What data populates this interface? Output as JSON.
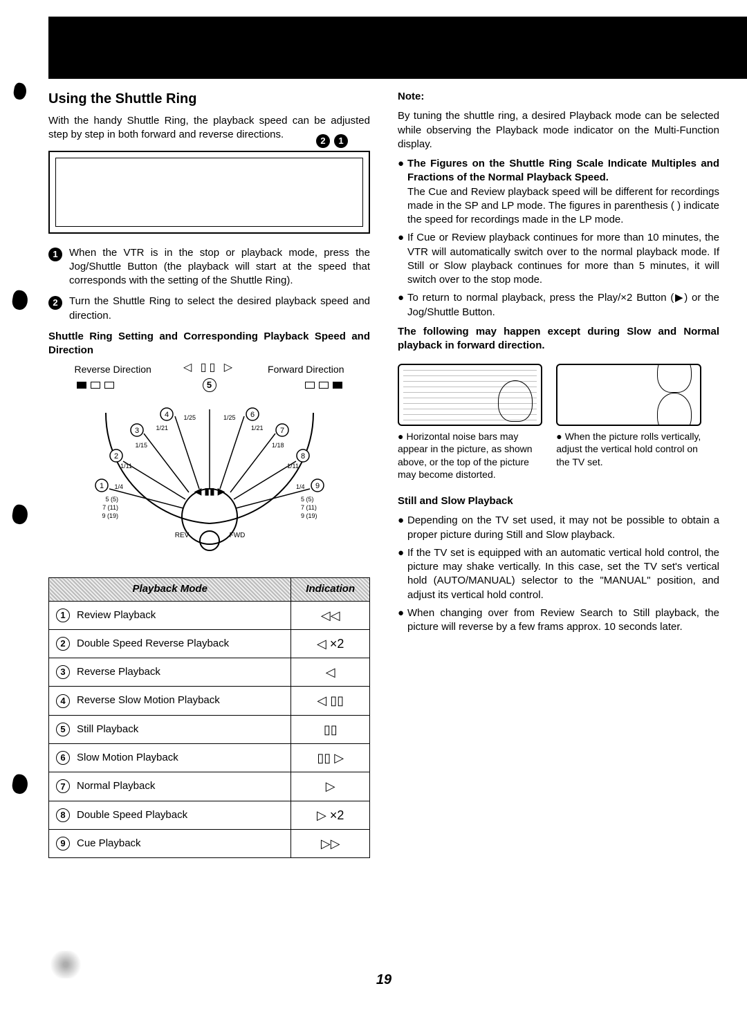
{
  "title": "Using the Shuttle Ring",
  "intro": "With the handy Shuttle Ring, the playback speed can be adjusted step by step in both forward and reverse directions.",
  "callouts": [
    "2",
    "1"
  ],
  "steps": [
    {
      "n": "1",
      "text": "When the VTR is in the stop or playback mode, press the Jog/Shuttle Button (the playback will start at the speed that corresponds with the setting of the Shuttle Ring)."
    },
    {
      "n": "2",
      "text": "Turn the Shuttle Ring to select the desired playback speed and direction."
    }
  ],
  "shuttle_heading": "Shuttle Ring Setting and Corresponding Playback Speed and Direction",
  "shuttle": {
    "rev_label": "Reverse Direction",
    "fwd_label": "Forward Direction",
    "top_icons": "◁  ▯▯  ▷",
    "dial_center_num": "5",
    "dial_left_nums": [
      "4",
      "3",
      "2",
      "1"
    ],
    "dial_right_nums": [
      "6",
      "7",
      "8",
      "9"
    ],
    "fractions_left": [
      "1/25",
      "1/21",
      "1/15",
      "1/11",
      "1/4"
    ],
    "fractions_right": [
      "1/25",
      "1/21",
      "1/18",
      "1/11",
      "1/4"
    ],
    "speed_left": [
      "5 (5)",
      "7 (11)",
      "9 (19)"
    ],
    "speed_right": [
      "5 (5)",
      "7 (11)",
      "9 (19)"
    ],
    "rev_text": "REV",
    "fwd_text": "FWD",
    "center_icons": "◀ ▮▮ ▶"
  },
  "table": {
    "headers": [
      "Playback Mode",
      "Indication"
    ],
    "rows": [
      {
        "n": "1",
        "mode": "Review Playback",
        "ind": "◁◁"
      },
      {
        "n": "2",
        "mode": "Double Speed Reverse Playback",
        "ind": "◁  ×2"
      },
      {
        "n": "3",
        "mode": "Reverse Playback",
        "ind": "◁"
      },
      {
        "n": "4",
        "mode": "Reverse Slow Motion Playback",
        "ind": "◁ ▯▯"
      },
      {
        "n": "5",
        "mode": "Still Playback",
        "ind": "▯▯"
      },
      {
        "n": "6",
        "mode": "Slow Motion Playback",
        "ind": "▯▯ ▷"
      },
      {
        "n": "7",
        "mode": "Normal Playback",
        "ind": "▷"
      },
      {
        "n": "8",
        "mode": "Double Speed Playback",
        "ind": "▷  ×2"
      },
      {
        "n": "9",
        "mode": "Cue Playback",
        "ind": "▷▷"
      }
    ]
  },
  "right": {
    "note_label": "Note:",
    "note_intro": "By tuning the shuttle ring, a desired Playback mode can be selected while observing the Playback mode indicator on the Multi-Function display.",
    "bullets1": [
      {
        "bold": "The Figures on the Shuttle Ring Scale Indicate Multiples and Fractions of the Normal Playback Speed.",
        "text": "The Cue and Review playback speed will be different for recordings made in the SP and LP mode. The figures in parenthesis ( ) indicate the speed for recordings made in the LP mode."
      },
      {
        "bold": "",
        "text": "If Cue or Review playback continues for more than 10 minutes, the VTR will automatically switch over to the normal playback mode. If Still or Slow playback continues for more than 5 minutes, it will switch over to the stop mode."
      },
      {
        "bold": "",
        "text": "To return to normal playback, press the Play/×2 Button (▶) or the Jog/Shuttle Button."
      }
    ],
    "warning": "The following may happen except during Slow and Normal playback in forward direction.",
    "tv_captions": [
      "Horizontal noise bars may appear in the picture, as shown above, or the top of the picture may become distorted.",
      "When the picture rolls vertically, adjust the vertical hold control on the TV set."
    ],
    "still_heading": "Still and Slow Playback",
    "bullets2": [
      "Depending on the TV set used, it may not be possible to obtain a proper picture during Still and Slow playback.",
      "If the TV set is equipped with an automatic vertical hold control, the picture may shake vertically. In this case, set the TV set's vertical hold (AUTO/MANUAL) selector to the \"MANUAL\" position, and adjust its vertical hold control.",
      "When changing over from Review Search to Still playback, the picture will reverse by a few frams approx. 10 seconds later."
    ]
  },
  "pagenum": "19"
}
